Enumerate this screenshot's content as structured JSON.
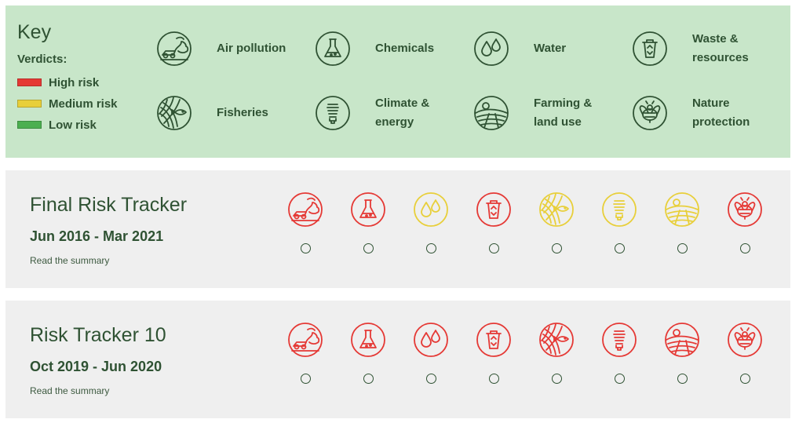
{
  "key": {
    "title": "Key",
    "verdicts_label": "Verdicts:",
    "verdicts": [
      {
        "label": "High risk",
        "color": "#e53935"
      },
      {
        "label": "Medium risk",
        "color": "#e8cf3a"
      },
      {
        "label": "Low risk",
        "color": "#4caf50"
      }
    ],
    "categories": [
      {
        "label": "Air pollution",
        "icon": "air-pollution-icon"
      },
      {
        "label": "Chemicals",
        "icon": "chemicals-icon"
      },
      {
        "label": "Water",
        "icon": "water-icon"
      },
      {
        "label": "Waste &\nresources",
        "icon": "waste-icon"
      },
      {
        "label": "Fisheries",
        "icon": "fisheries-icon"
      },
      {
        "label": "Climate &\nenergy",
        "icon": "climate-icon"
      },
      {
        "label": "Farming &\nland use",
        "icon": "farming-icon"
      },
      {
        "label": "Nature\nprotection",
        "icon": "nature-icon"
      }
    ]
  },
  "colors": {
    "key_icon": "#2f5233",
    "high": "#e53935",
    "medium": "#e8cf3a",
    "low": "#4caf50"
  },
  "trackers": [
    {
      "title": "Final Risk Tracker",
      "period": "Jun 2016 - Mar 2021",
      "link": "Read the summary",
      "verdicts": [
        "high",
        "high",
        "medium",
        "high",
        "medium",
        "medium",
        "medium",
        "high"
      ]
    },
    {
      "title": "Risk Tracker 10",
      "period": "Oct 2019 - Jun 2020",
      "link": "Read the summary",
      "verdicts": [
        "high",
        "high",
        "high",
        "high",
        "high",
        "high",
        "high",
        "high"
      ]
    }
  ]
}
